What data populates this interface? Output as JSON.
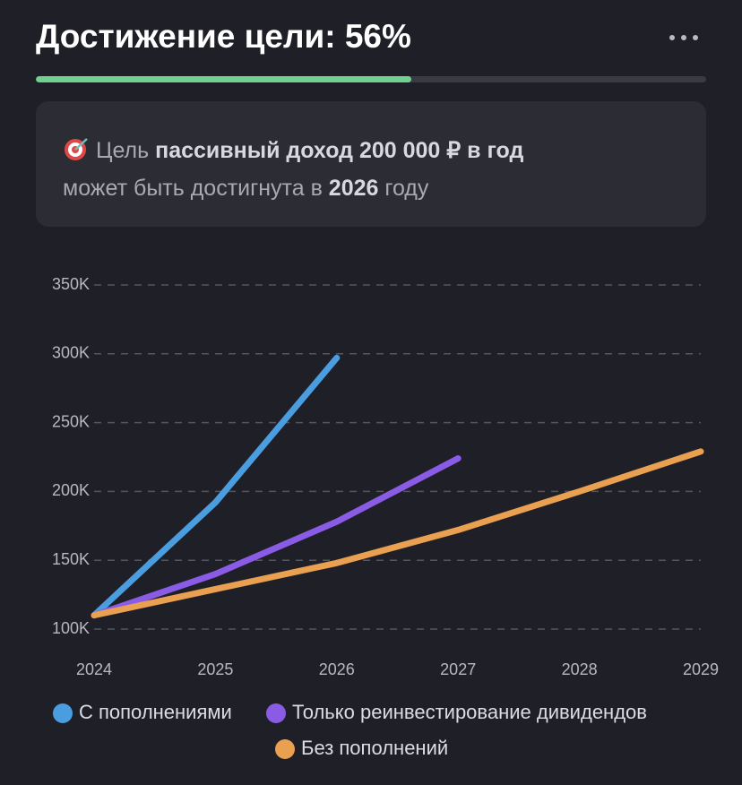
{
  "header": {
    "title": "Достижение цели: 56%"
  },
  "progress": {
    "value": 56
  },
  "info": {
    "prefix": "Цель",
    "goal": "пассивный доход 200 000 ₽ в год",
    "line2_prefix": "может быть достигнута в",
    "year": "2026",
    "line2_suffix": "году"
  },
  "chart_data": {
    "type": "line",
    "x": [
      2024,
      2025,
      2026,
      2027,
      2028,
      2029
    ],
    "xlim": [
      2024,
      2029
    ],
    "xticks": [
      2024,
      2025,
      2026,
      2027,
      2028,
      2029
    ],
    "ylim": [
      100000,
      350000
    ],
    "yticks": [
      {
        "value": 100000,
        "label": "100K"
      },
      {
        "value": 150000,
        "label": "150K"
      },
      {
        "value": 200000,
        "label": "200K"
      },
      {
        "value": 250000,
        "label": "250K"
      },
      {
        "value": 300000,
        "label": "300K"
      },
      {
        "value": 350000,
        "label": "350K"
      }
    ],
    "grid": true,
    "legend": "bottom",
    "series": [
      {
        "name": "С пополнениями",
        "color": "#4a9ee0",
        "values": [
          110000,
          192000,
          297000,
          null,
          null,
          null
        ]
      },
      {
        "name": "Только реинвестирование дивидендов",
        "color": "#8a5ce6",
        "values": [
          110000,
          140000,
          178000,
          224000,
          null,
          null
        ]
      },
      {
        "name": "Без пополнений",
        "color": "#e9a050",
        "values": [
          110000,
          129000,
          148000,
          172000,
          200000,
          229000
        ]
      }
    ]
  }
}
